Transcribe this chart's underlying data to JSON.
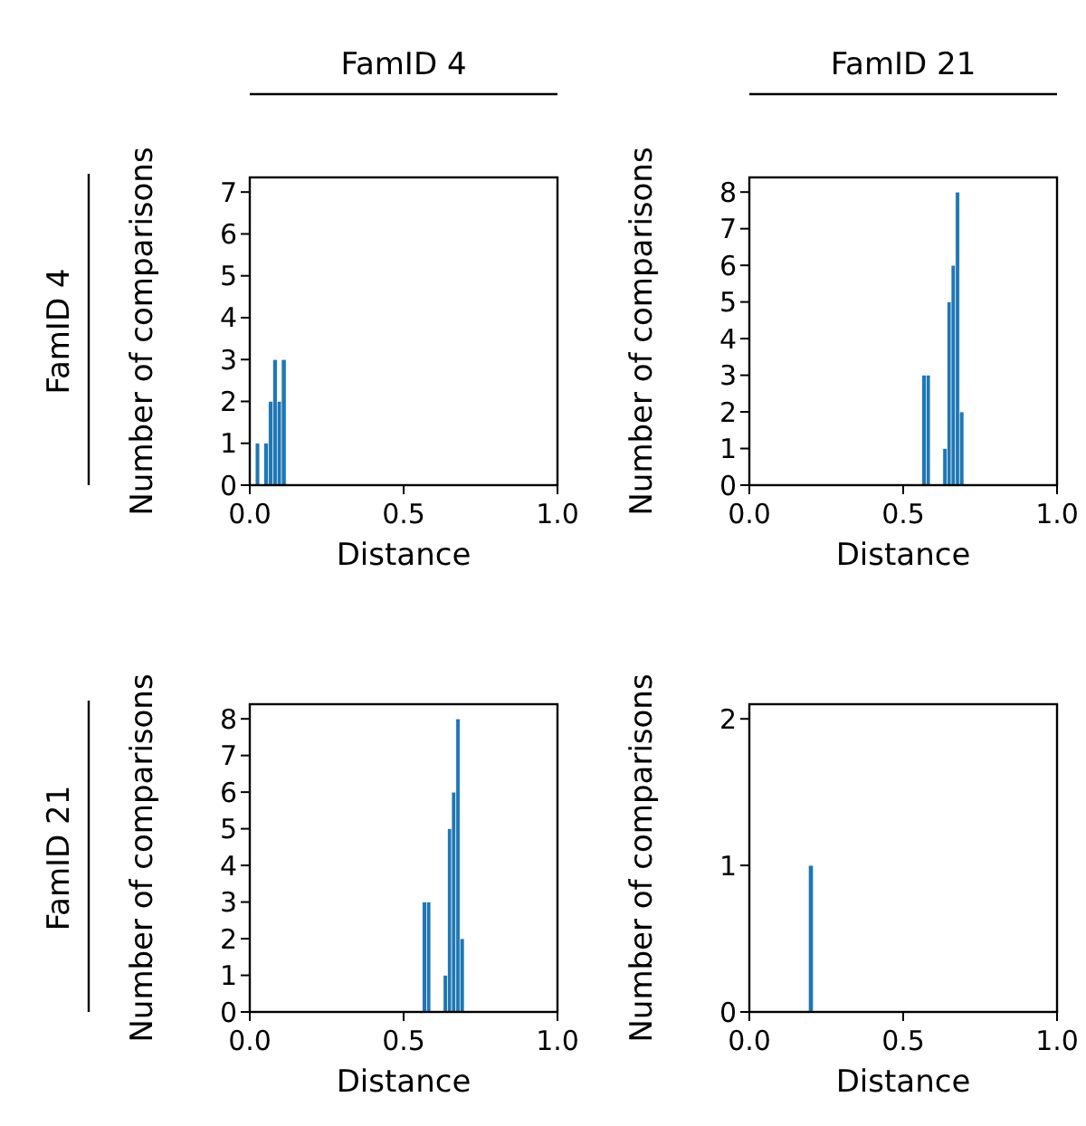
{
  "chart_data": [
    {
      "type": "histogram",
      "title": "FamID 4",
      "annotations": [
        "FamID 4"
      ],
      "xlabel": "Distance",
      "ylabel": "Number of comparisons",
      "color": "#1f77b4",
      "bins": [
        0.018,
        0.032,
        0.046,
        0.061,
        0.075,
        0.089,
        0.103,
        0.118
      ],
      "values": [
        1,
        0,
        1,
        2,
        3,
        2,
        3
      ],
      "xlim": [
        0,
        1
      ],
      "xticks": [
        {
          "value": 0,
          "label": "0.0"
        },
        {
          "value": 0.5,
          "label": "0.5"
        },
        {
          "value": 1,
          "label": "1.0"
        }
      ],
      "ylim": [
        0,
        7.35
      ],
      "yticks": [
        0,
        1,
        2,
        3,
        4,
        5,
        6,
        7
      ]
    },
    {
      "type": "histogram",
      "title": "FamID 21",
      "xlabel": "Distance",
      "ylabel": "Number of comparisons",
      "color": "#1f77b4",
      "bins": [
        0.561,
        0.575,
        0.588,
        0.602,
        0.616,
        0.629,
        0.643,
        0.656,
        0.67,
        0.683,
        0.697
      ],
      "values": [
        3,
        3,
        0,
        0,
        0,
        1,
        5,
        6,
        8,
        2
      ],
      "xlim": [
        0,
        1
      ],
      "xticks": [
        {
          "value": 0,
          "label": "0.0"
        },
        {
          "value": 0.5,
          "label": "0.5"
        },
        {
          "value": 1,
          "label": "1.0"
        }
      ],
      "ylim": [
        0,
        8.4
      ],
      "yticks": [
        0,
        1,
        2,
        3,
        4,
        5,
        6,
        7,
        8
      ]
    },
    {
      "type": "histogram",
      "annotations": [
        "FamID 21"
      ],
      "xlabel": "Distance",
      "ylabel": "Number of comparisons",
      "color": "#1f77b4",
      "bins": [
        0.561,
        0.575,
        0.588,
        0.602,
        0.616,
        0.629,
        0.643,
        0.656,
        0.67,
        0.683,
        0.697
      ],
      "values": [
        3,
        3,
        0,
        0,
        0,
        1,
        5,
        6,
        8,
        2
      ],
      "xlim": [
        0,
        1
      ],
      "xticks": [
        {
          "value": 0,
          "label": "0.0"
        },
        {
          "value": 0.5,
          "label": "0.5"
        },
        {
          "value": 1,
          "label": "1.0"
        }
      ],
      "ylim": [
        0,
        8.4
      ],
      "yticks": [
        0,
        1,
        2,
        3,
        4,
        5,
        6,
        7,
        8
      ]
    },
    {
      "type": "histogram",
      "xlabel": "Distance",
      "ylabel": "Number of comparisons",
      "color": "#1f77b4",
      "bins": [
        0.192,
        0.208
      ],
      "values": [
        1
      ],
      "xlim": [
        0,
        1
      ],
      "xticks": [
        {
          "value": 0,
          "label": "0.0"
        },
        {
          "value": 0.5,
          "label": "0.5"
        },
        {
          "value": 1,
          "label": "1.0"
        }
      ],
      "ylim": [
        0,
        2.1
      ],
      "yticks": [
        0,
        1,
        2
      ]
    }
  ]
}
